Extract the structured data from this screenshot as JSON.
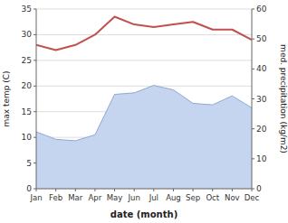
{
  "chart_data": {
    "type": "line",
    "categories": [
      "Jan",
      "Feb",
      "Mar",
      "Apr",
      "May",
      "Jun",
      "Jul",
      "Aug",
      "Sep",
      "Oct",
      "Nov",
      "Dec"
    ],
    "series": [
      {
        "type": "area",
        "axis": "y2",
        "color": "#c5d5f0",
        "values": [
          19,
          16.5,
          16,
          18,
          31.5,
          32,
          34.5,
          33,
          28.5,
          28,
          31,
          27
        ]
      },
      {
        "type": "line",
        "color": "#c0504d",
        "values": [
          28,
          27,
          28,
          30,
          33.5,
          32,
          31.5,
          32,
          32.5,
          31,
          31,
          29
        ]
      }
    ],
    "xlabel": "date (month)",
    "ylabel": "max temp (C)",
    "y2label": "med. precipitation (kg/m2)",
    "ylim": [
      0,
      35
    ],
    "yticks": [
      0,
      5,
      10,
      15,
      20,
      25,
      30,
      35
    ],
    "y2lim": [
      0,
      60
    ],
    "y2ticks": [
      0,
      10,
      20,
      30,
      40,
      50,
      60
    ],
    "grid": true
  }
}
